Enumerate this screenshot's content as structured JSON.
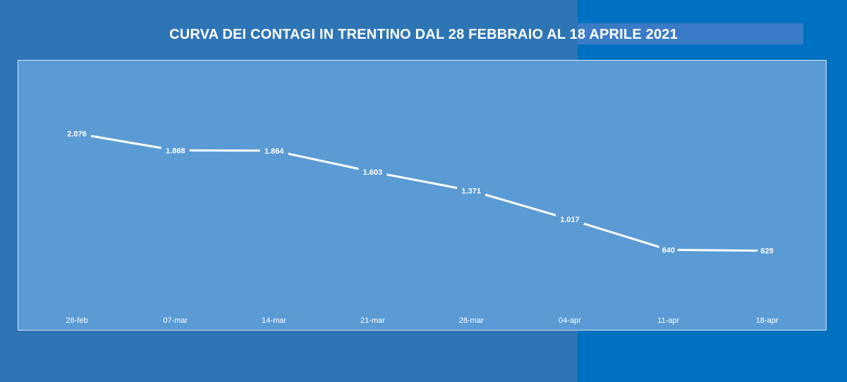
{
  "colors": {
    "bg_left": "#2E75B6",
    "bg_right": "#0070C0",
    "title_band": "#3A7BC8",
    "plot_bg": "#5B9BD5",
    "line": "#FFFFFF",
    "text": "#FFFFFF"
  },
  "chart_data": {
    "type": "line",
    "title": "CURVA DEI CONTAGI IN TRENTINO DAL 28 FEBBRAIO AL 18 APRILE 2021",
    "categories": [
      "28-feb",
      "07-mar",
      "14-mar",
      "21-mar",
      "28-mar",
      "04-apr",
      "11-apr",
      "18-apr"
    ],
    "series": [
      {
        "values": [
          2076,
          1868,
          1864,
          1603,
          1371,
          1017,
          640,
          629
        ],
        "labels": [
          "2.076",
          "1.868",
          "1.864",
          "1.603",
          "1.371",
          "1.017",
          "640",
          "629"
        ]
      }
    ],
    "xlabel": "",
    "ylabel": "",
    "ylim": [
      0,
      2500
    ],
    "grid": false,
    "legend": "none",
    "drop_lines": true
  }
}
